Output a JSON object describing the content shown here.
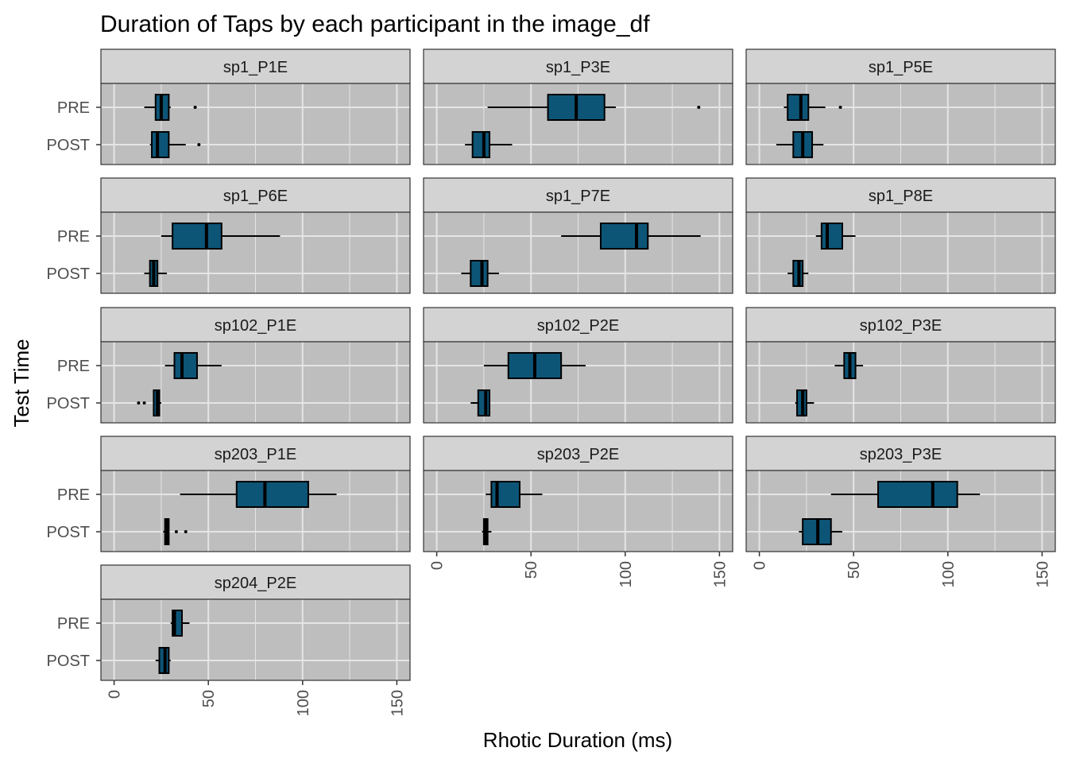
{
  "chart_data": {
    "type": "boxplot",
    "title": "Duration of Taps by each participant in the image_df",
    "xlabel": "Rhotic Duration (ms)",
    "ylabel": "Test Time",
    "xlim": [
      -7,
      157
    ],
    "x_ticks": [
      0,
      50,
      100,
      150
    ],
    "categories": [
      "PRE",
      "POST"
    ],
    "facet_columns": 3,
    "grid": true,
    "colors": {
      "box_fill": "#0d5577",
      "panel_bg": "#bebebe",
      "strip_bg": "#d3d3d3",
      "grid": "#e5e5e5"
    },
    "facets": [
      {
        "name": "sp1_P1E",
        "PRE": {
          "whisker_low": 16,
          "q1": 22,
          "median": 25,
          "q3": 29,
          "whisker_high": 30,
          "outliers": [
            43
          ]
        },
        "POST": {
          "whisker_low": 19,
          "q1": 20,
          "median": 23,
          "q3": 29,
          "whisker_high": 38,
          "outliers": [
            45
          ]
        }
      },
      {
        "name": "sp1_P3E",
        "PRE": {
          "whisker_low": 27,
          "q1": 59,
          "median": 74,
          "q3": 89,
          "whisker_high": 95,
          "outliers": [
            139
          ]
        },
        "POST": {
          "whisker_low": 15,
          "q1": 19,
          "median": 25,
          "q3": 28,
          "whisker_high": 40,
          "outliers": []
        }
      },
      {
        "name": "sp1_P5E",
        "PRE": {
          "whisker_low": 13,
          "q1": 15,
          "median": 22,
          "q3": 26,
          "whisker_high": 35,
          "outliers": [
            43
          ]
        },
        "POST": {
          "whisker_low": 9,
          "q1": 18,
          "median": 23,
          "q3": 28,
          "whisker_high": 34,
          "outliers": []
        }
      },
      {
        "name": "sp1_P6E",
        "PRE": {
          "whisker_low": 25,
          "q1": 31,
          "median": 49,
          "q3": 57,
          "whisker_high": 88,
          "outliers": []
        },
        "POST": {
          "whisker_low": 16,
          "q1": 19,
          "median": 21,
          "q3": 23,
          "whisker_high": 28,
          "outliers": []
        }
      },
      {
        "name": "sp1_P7E",
        "PRE": {
          "whisker_low": 66,
          "q1": 87,
          "median": 106,
          "q3": 112,
          "whisker_high": 140,
          "outliers": []
        },
        "POST": {
          "whisker_low": 13,
          "q1": 18,
          "median": 24,
          "q3": 27,
          "whisker_high": 33,
          "outliers": []
        }
      },
      {
        "name": "sp1_P8E",
        "PRE": {
          "whisker_low": 30,
          "q1": 33,
          "median": 36,
          "q3": 44,
          "whisker_high": 51,
          "outliers": []
        },
        "POST": {
          "whisker_low": 15,
          "q1": 18,
          "median": 21,
          "q3": 23,
          "whisker_high": 26,
          "outliers": []
        }
      },
      {
        "name": "sp102_P1E",
        "PRE": {
          "whisker_low": 27,
          "q1": 32,
          "median": 36,
          "q3": 44,
          "whisker_high": 57,
          "outliers": []
        },
        "POST": {
          "whisker_low": 21,
          "q1": 21,
          "median": 23,
          "q3": 24,
          "whisker_high": 25,
          "outliers": [
            13,
            16
          ]
        }
      },
      {
        "name": "sp102_P2E",
        "PRE": {
          "whisker_low": 25,
          "q1": 38,
          "median": 52,
          "q3": 66,
          "whisker_high": 79,
          "outliers": []
        },
        "POST": {
          "whisker_low": 18,
          "q1": 22,
          "median": 26,
          "q3": 28,
          "whisker_high": 28,
          "outliers": []
        }
      },
      {
        "name": "sp102_P3E",
        "PRE": {
          "whisker_low": 40,
          "q1": 45,
          "median": 48,
          "q3": 51,
          "whisker_high": 55,
          "outliers": []
        },
        "POST": {
          "whisker_low": 19,
          "q1": 20,
          "median": 23,
          "q3": 25,
          "whisker_high": 29,
          "outliers": []
        }
      },
      {
        "name": "sp203_P1E",
        "PRE": {
          "whisker_low": 35,
          "q1": 65,
          "median": 80,
          "q3": 103,
          "whisker_high": 118,
          "outliers": []
        },
        "POST": {
          "whisker_low": 26,
          "q1": 27,
          "median": 28,
          "q3": 29,
          "whisker_high": 29,
          "outliers": [
            33,
            38
          ]
        }
      },
      {
        "name": "sp203_P2E",
        "PRE": {
          "whisker_low": 26,
          "q1": 29,
          "median": 32,
          "q3": 44,
          "whisker_high": 56,
          "outliers": []
        },
        "POST": {
          "whisker_low": 24,
          "q1": 25,
          "median": 26,
          "q3": 27,
          "whisker_high": 29,
          "outliers": []
        }
      },
      {
        "name": "sp203_P3E",
        "PRE": {
          "whisker_low": 38,
          "q1": 63,
          "median": 92,
          "q3": 105,
          "whisker_high": 117,
          "outliers": []
        },
        "POST": {
          "whisker_low": 21,
          "q1": 23,
          "median": 31,
          "q3": 38,
          "whisker_high": 44,
          "outliers": []
        }
      },
      {
        "name": "sp204_P2E",
        "PRE": {
          "whisker_low": 30,
          "q1": 31,
          "median": 32,
          "q3": 36,
          "whisker_high": 40,
          "outliers": []
        },
        "POST": {
          "whisker_low": 22,
          "q1": 24,
          "median": 27,
          "q3": 29,
          "whisker_high": 30,
          "outliers": []
        }
      }
    ]
  }
}
